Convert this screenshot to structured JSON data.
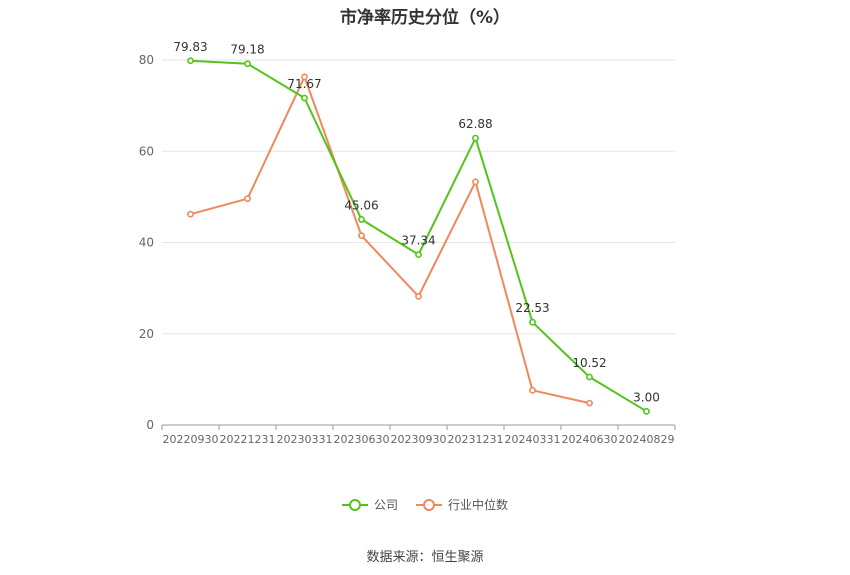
{
  "chart_data": {
    "type": "line",
    "title": "市净率历史分位（%）",
    "x": [
      "20220930",
      "20221231",
      "20230331",
      "20230630",
      "20230930",
      "20231231",
      "20240331",
      "20240630",
      "20240829"
    ],
    "ylim": [
      0,
      80
    ],
    "yticks": [
      "0",
      "20",
      "40",
      "60",
      "80"
    ],
    "grid": true,
    "legend_position": "bottom",
    "series": [
      {
        "name": "公司",
        "color": "#52c41a",
        "values": [
          79.83,
          79.18,
          71.67,
          45.06,
          37.34,
          62.88,
          22.53,
          10.52,
          3.0
        ],
        "labels": [
          "79.83",
          "79.18",
          "71.67",
          "45.06",
          "37.34",
          "62.88",
          "22.53",
          "10.52",
          "3.00"
        ]
      },
      {
        "name": "行业中位数",
        "color": "#f0885a",
        "values": [
          46.2,
          49.6,
          76.3,
          41.5,
          28.2,
          53.3,
          7.6,
          4.8,
          null
        ]
      }
    ]
  },
  "source": "数据来源：恒生聚源"
}
